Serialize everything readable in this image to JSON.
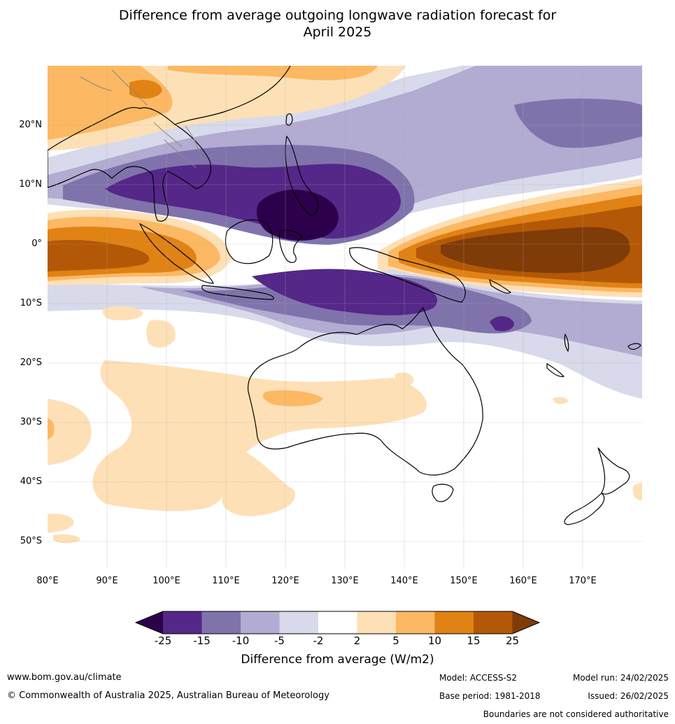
{
  "title": {
    "line1": "Difference from average outgoing longwave radiation forecast for",
    "line2": "April 2025"
  },
  "map": {
    "lat_labels": [
      "20°N",
      "10°N",
      "0°",
      "10°S",
      "20°S",
      "30°S",
      "40°S",
      "50°S"
    ],
    "lon_labels": [
      "80°E",
      "90°E",
      "100°E",
      "110°E",
      "120°E",
      "130°E",
      "140°E",
      "150°E",
      "160°E",
      "170°E"
    ]
  },
  "colorbar": {
    "title": "Difference from average (W/m2)",
    "ticks": [
      "-25",
      "-15",
      "-10",
      "-5",
      "-2",
      "2",
      "5",
      "10",
      "15",
      "25"
    ],
    "colors": {
      "below_min": "#2d004b",
      "b1": "#542788",
      "b2": "#8073ac",
      "b3": "#b2abd2",
      "b4": "#d8daeb",
      "b5": "#ffffff",
      "b6": "#fee0b6",
      "b7": "#fdb863",
      "b8": "#e08214",
      "b9": "#b35806",
      "above_max": "#7f3b08"
    }
  },
  "footer": {
    "website": "www.bom.gov.au/climate",
    "copyright": "© Commonwealth of Australia 2025, Australian Bureau of Meteorology",
    "model": "Model: ACCESS-S2",
    "base_period": "Base period: 1981-2018",
    "model_run": "Model run: 24/02/2025",
    "issued": "Issued: 26/02/2025",
    "disclaimer": "Boundaries are not considered authoritative"
  }
}
